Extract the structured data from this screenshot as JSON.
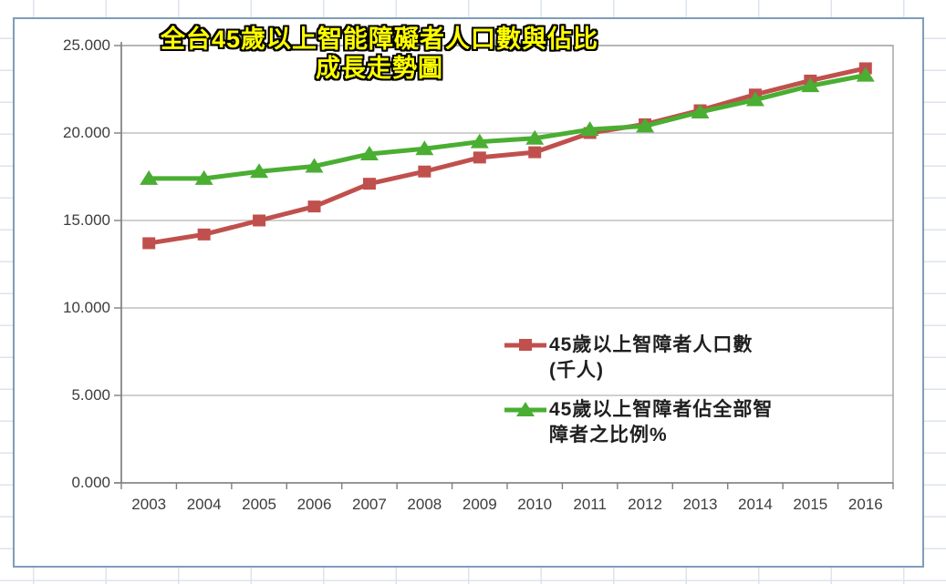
{
  "chart": {
    "title_lines": [
      "全台45歲以上智能障礙者人口數與佔比",
      "成長走勢圖"
    ],
    "title_color": "#ffff00",
    "legend": {
      "items": [
        {
          "name": "45歲以上智障者人口數(千人)",
          "lines": [
            "45歲以上智障者人口數",
            "(千人)"
          ],
          "marker": "square",
          "color": "#c0504d"
        },
        {
          "name": "45歲以上智障者佔全部智障者之比例%",
          "lines": [
            "45歲以上智障者佔全部智",
            "障者之比例%"
          ],
          "marker": "triangle",
          "color": "#4aae32"
        }
      ]
    }
  },
  "chart_data": {
    "type": "line",
    "title": "全台45歲以上智能障礙者人口數與佔比成長走勢圖",
    "categories": [
      "2003",
      "2004",
      "2005",
      "2006",
      "2007",
      "2008",
      "2009",
      "2010",
      "2011",
      "2012",
      "2013",
      "2014",
      "2015",
      "2016"
    ],
    "series": [
      {
        "name": "45歲以上智障者人口數(千人)",
        "color": "#c0504d",
        "marker": "square",
        "values": [
          13.7,
          14.2,
          15.0,
          15.8,
          17.1,
          17.8,
          18.6,
          18.9,
          20.0,
          20.5,
          21.3,
          22.2,
          23.0,
          23.7
        ]
      },
      {
        "name": "45歲以上智障者佔全部智障者之比例%",
        "color": "#4aae32",
        "marker": "triangle",
        "values": [
          17.4,
          17.4,
          17.8,
          18.1,
          18.8,
          19.1,
          19.5,
          19.7,
          20.2,
          20.4,
          21.2,
          21.9,
          22.7,
          23.3
        ]
      }
    ],
    "xlabel": "",
    "ylabel": "",
    "ylim": [
      0,
      25
    ],
    "y_tick_values": [
      0,
      5,
      10,
      15,
      20,
      25
    ],
    "y_tick_labels": [
      "0.000",
      "5.000",
      "10.000",
      "15.000",
      "20.000",
      "25.000"
    ],
    "grid": true,
    "legend_position": "inside-right",
    "colors": {
      "gridline": "#b3b3b3",
      "axis": "#7f7f7f",
      "plot_border": "#999999",
      "frame_border": "#7f9db9",
      "axis_text": "#3d3d3d"
    }
  }
}
